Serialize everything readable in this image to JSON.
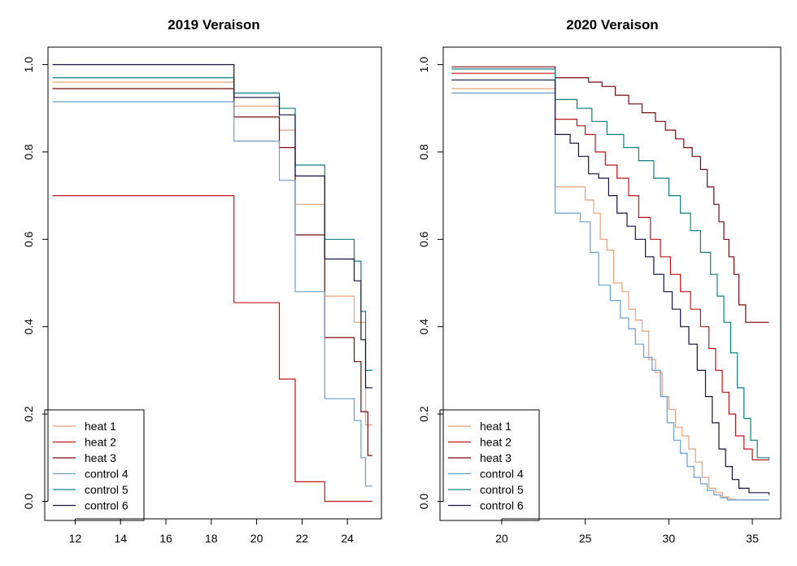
{
  "chart_data": [
    {
      "type": "line",
      "step": true,
      "title": "2019 Veraison",
      "xlabel": "",
      "ylabel": "",
      "xlim": [
        10.8,
        25.5
      ],
      "ylim": [
        -0.04,
        1.04
      ],
      "xticks": [
        12,
        14,
        16,
        18,
        20,
        22,
        24
      ],
      "yticks": [
        0.0,
        0.2,
        0.4,
        0.6,
        0.8,
        1.0
      ],
      "xtick_labels": [
        "12",
        "14",
        "16",
        "18",
        "20",
        "22",
        "24"
      ],
      "ytick_labels": [
        "0.0",
        "0.2",
        "0.4",
        "0.6",
        "0.8",
        "1.0"
      ],
      "legend_position": "bottom-left",
      "series": [
        {
          "name": "heat 1",
          "color": "#e8a07c",
          "x": [
            11,
            19,
            21,
            21.7,
            23,
            24.3,
            24.8,
            25.1
          ],
          "y": [
            0.96,
            0.905,
            0.85,
            0.68,
            0.47,
            0.41,
            0.175,
            0.175
          ]
        },
        {
          "name": "heat 2",
          "color": "#c0161b",
          "x": [
            11,
            19,
            21,
            21.7,
            23,
            24.3,
            25.1
          ],
          "y": [
            0.7,
            0.455,
            0.28,
            0.045,
            0.0,
            0.0,
            0.0
          ]
        },
        {
          "name": "heat 3",
          "color": "#7a0a10",
          "x": [
            11,
            19,
            21,
            21.7,
            23,
            24.3,
            24.6,
            24.9,
            25.1
          ],
          "y": [
            0.945,
            0.88,
            0.81,
            0.61,
            0.375,
            0.32,
            0.205,
            0.105,
            0.105
          ]
        },
        {
          "name": "control 4",
          "color": "#6b9ecb",
          "x": [
            11,
            19,
            21,
            21.7,
            23,
            24.3,
            24.6,
            24.8,
            25.1
          ],
          "y": [
            0.915,
            0.825,
            0.735,
            0.48,
            0.235,
            0.185,
            0.1,
            0.035,
            0.035
          ]
        },
        {
          "name": "control 5",
          "color": "#118080",
          "x": [
            11,
            19,
            21,
            21.7,
            23,
            24.3,
            24.6,
            24.8,
            25.1
          ],
          "y": [
            0.97,
            0.935,
            0.9,
            0.77,
            0.6,
            0.55,
            0.435,
            0.3,
            0.3
          ]
        },
        {
          "name": "control 6",
          "color": "#14143f",
          "x": [
            11,
            19,
            21,
            21.7,
            23,
            24.3,
            24.6,
            24.8,
            25.1
          ],
          "y": [
            1.0,
            0.925,
            0.885,
            0.745,
            0.555,
            0.505,
            0.37,
            0.26,
            0.26
          ]
        }
      ]
    },
    {
      "type": "line",
      "step": true,
      "title": "2020 Veraison",
      "xlabel": "",
      "ylabel": "",
      "xlim": [
        16.5,
        36.7
      ],
      "ylim": [
        -0.04,
        1.04
      ],
      "xticks": [
        20,
        25,
        30,
        35
      ],
      "yticks": [
        0.0,
        0.2,
        0.4,
        0.6,
        0.8,
        1.0
      ],
      "xtick_labels": [
        "20",
        "25",
        "30",
        "35"
      ],
      "ytick_labels": [
        "0.0",
        "0.2",
        "0.4",
        "0.6",
        "0.8",
        "1.0"
      ],
      "legend_position": "bottom-left",
      "series": [
        {
          "name": "heat 1",
          "color": "#e8a07c",
          "x": [
            17,
            23.2,
            25,
            25.5,
            25.9,
            26.3,
            26.7,
            27.2,
            27.6,
            28,
            28.4,
            28.8,
            29.2,
            29.6,
            30,
            30.4,
            30.8,
            31.2,
            31.6,
            32,
            32.4,
            32.8,
            33.2,
            33.6,
            34,
            36
          ],
          "y": [
            0.945,
            0.72,
            0.69,
            0.66,
            0.6,
            0.575,
            0.5,
            0.48,
            0.44,
            0.415,
            0.39,
            0.325,
            0.295,
            0.24,
            0.21,
            0.17,
            0.15,
            0.12,
            0.09,
            0.055,
            0.03,
            0.02,
            0.01,
            0.005,
            0.003,
            0.003
          ]
        },
        {
          "name": "heat 2",
          "color": "#c0161b",
          "x": [
            17,
            23.2,
            24.5,
            25,
            25.6,
            26.2,
            26.9,
            27.6,
            28.2,
            28.9,
            29.5,
            30.1,
            30.7,
            31.3,
            31.9,
            32.4,
            32.8,
            33.2,
            33.6,
            34,
            34.5,
            35,
            36
          ],
          "y": [
            0.98,
            0.875,
            0.86,
            0.84,
            0.8,
            0.77,
            0.74,
            0.7,
            0.65,
            0.6,
            0.56,
            0.52,
            0.48,
            0.44,
            0.4,
            0.35,
            0.3,
            0.25,
            0.2,
            0.15,
            0.12,
            0.095,
            0.095
          ]
        },
        {
          "name": "heat 3",
          "color": "#7a0a10",
          "x": [
            17,
            23.2,
            25.2,
            26,
            26.8,
            27.6,
            28.4,
            29.2,
            29.8,
            30.4,
            30.9,
            31.4,
            31.9,
            32.3,
            32.7,
            33,
            33.3,
            33.6,
            33.9,
            34.2,
            34.6,
            35.2,
            36
          ],
          "y": [
            0.995,
            0.97,
            0.96,
            0.95,
            0.93,
            0.91,
            0.89,
            0.87,
            0.85,
            0.83,
            0.81,
            0.79,
            0.76,
            0.72,
            0.68,
            0.64,
            0.6,
            0.56,
            0.52,
            0.45,
            0.41,
            0.41,
            0.41
          ]
        },
        {
          "name": "control 4",
          "color": "#6b9ecb",
          "x": [
            17,
            23.2,
            24.7,
            25.3,
            25.8,
            26.5,
            27.1,
            27.6,
            28,
            28.5,
            29,
            29.5,
            29.9,
            30.3,
            30.7,
            31.1,
            31.5,
            31.9,
            32.3,
            32.7,
            33.1,
            33.5,
            36
          ],
          "y": [
            0.935,
            0.66,
            0.64,
            0.57,
            0.495,
            0.46,
            0.42,
            0.395,
            0.36,
            0.33,
            0.3,
            0.24,
            0.18,
            0.14,
            0.11,
            0.08,
            0.055,
            0.04,
            0.025,
            0.015,
            0.008,
            0.003,
            0.003
          ]
        },
        {
          "name": "control 5",
          "color": "#118080",
          "x": [
            17,
            23.2,
            24.5,
            25.4,
            26.3,
            27.3,
            28.2,
            29.1,
            30,
            30.7,
            31.3,
            31.9,
            32.5,
            32.9,
            33.3,
            33.7,
            34.1,
            34.5,
            34.9,
            35.3,
            36
          ],
          "y": [
            0.99,
            0.92,
            0.9,
            0.87,
            0.84,
            0.81,
            0.78,
            0.74,
            0.7,
            0.66,
            0.62,
            0.57,
            0.52,
            0.47,
            0.41,
            0.34,
            0.26,
            0.19,
            0.14,
            0.1,
            0.095
          ]
        },
        {
          "name": "control 6",
          "color": "#14143f",
          "x": [
            17,
            23.2,
            24.1,
            24.6,
            25.2,
            25.8,
            26.4,
            26.9,
            27.5,
            28,
            28.6,
            29.1,
            29.7,
            30.2,
            30.7,
            31.2,
            31.7,
            32.2,
            32.6,
            33,
            33.4,
            33.8,
            34.2,
            34.8,
            36
          ],
          "y": [
            0.965,
            0.84,
            0.82,
            0.79,
            0.75,
            0.74,
            0.7,
            0.66,
            0.63,
            0.6,
            0.56,
            0.52,
            0.48,
            0.44,
            0.4,
            0.36,
            0.3,
            0.24,
            0.18,
            0.12,
            0.08,
            0.05,
            0.03,
            0.02,
            0.015
          ]
        }
      ]
    }
  ]
}
